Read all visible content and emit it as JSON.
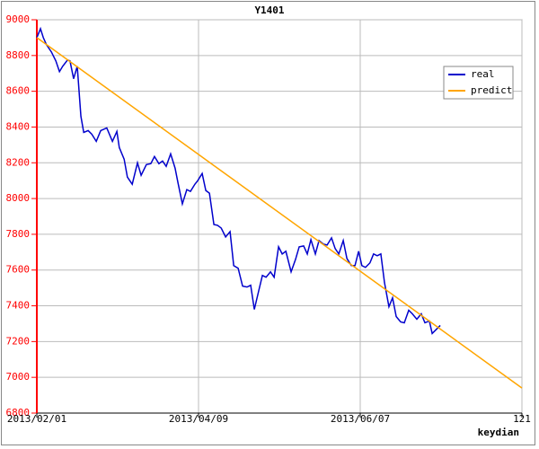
{
  "chart_data": {
    "type": "line",
    "title": "Y1401",
    "x_axis_label": "keydian",
    "xlim": [
      0,
      120
    ],
    "ylim": [
      6800,
      9000
    ],
    "xticks": [
      {
        "value": 0,
        "label": "2013/02/01"
      },
      {
        "value": 40,
        "label": "2013/04/09"
      },
      {
        "value": 80,
        "label": "2013/06/07"
      },
      {
        "value": 120,
        "label": "121"
      }
    ],
    "yticks": [
      6800,
      7000,
      7200,
      7400,
      7600,
      7800,
      8000,
      8200,
      8400,
      8600,
      8800,
      9000
    ],
    "grid": true,
    "legend": "upper right",
    "axis_color": "#ff0000",
    "series": [
      {
        "name": "real",
        "color": "#0000cc",
        "x": [
          0,
          0.9,
          1.6,
          2.4,
          3.6,
          4.7,
          5.6,
          6.4,
          7.6,
          8.2,
          9.1,
          10,
          10.9,
          11.6,
          12.7,
          13.6,
          14.7,
          15.8,
          17.3,
          18.7,
          19.8,
          20.4,
          21.6,
          22.4,
          23.6,
          24.9,
          25.8,
          27.1,
          28.2,
          29.1,
          30.2,
          31.1,
          32,
          33.1,
          34.2,
          34.9,
          36,
          37.1,
          38,
          39.1,
          39.8,
          40.9,
          41.8,
          42.7,
          43.8,
          44.7,
          45.6,
          46.7,
          47.8,
          48.7,
          49.8,
          50.9,
          52,
          52.9,
          53.8,
          54.9,
          55.8,
          56.7,
          57.8,
          58.7,
          59.8,
          60.7,
          61.6,
          62.9,
          64,
          64.9,
          66,
          66.9,
          67.8,
          68.9,
          69.8,
          70.9,
          71.8,
          72.9,
          73.8,
          74.7,
          75.8,
          76.7,
          77.8,
          78.7,
          79.6,
          80.4,
          81.3,
          82.4,
          83.3,
          84.2,
          85.1,
          86,
          87.1,
          88,
          88.9,
          90,
          90.9,
          92,
          92.9,
          94,
          95.1,
          96,
          97.1,
          97.8,
          98.9,
          99.8
        ],
        "values": [
          8900,
          8950,
          8900,
          8860,
          8820,
          8770,
          8710,
          8740,
          8775,
          8770,
          8670,
          8740,
          8460,
          8370,
          8380,
          8360,
          8320,
          8380,
          8395,
          8320,
          8375,
          8285,
          8220,
          8120,
          8080,
          8200,
          8130,
          8190,
          8195,
          8235,
          8195,
          8210,
          8180,
          8250,
          8170,
          8090,
          7970,
          8050,
          8040,
          8080,
          8100,
          8140,
          8045,
          8030,
          7855,
          7850,
          7835,
          7785,
          7815,
          7625,
          7610,
          7510,
          7505,
          7515,
          7380,
          7485,
          7570,
          7560,
          7590,
          7560,
          7730,
          7690,
          7705,
          7590,
          7660,
          7730,
          7735,
          7690,
          7770,
          7690,
          7765,
          7745,
          7740,
          7780,
          7720,
          7690,
          7765,
          7665,
          7625,
          7625,
          7705,
          7625,
          7615,
          7640,
          7690,
          7680,
          7690,
          7530,
          7395,
          7445,
          7340,
          7310,
          7305,
          7375,
          7355,
          7325,
          7355,
          7305,
          7315,
          7245,
          7270,
          7290
        ]
      },
      {
        "name": "predict",
        "color": "#ffa500",
        "x": [
          0,
          120
        ],
        "values": [
          8900,
          6940
        ]
      }
    ]
  }
}
